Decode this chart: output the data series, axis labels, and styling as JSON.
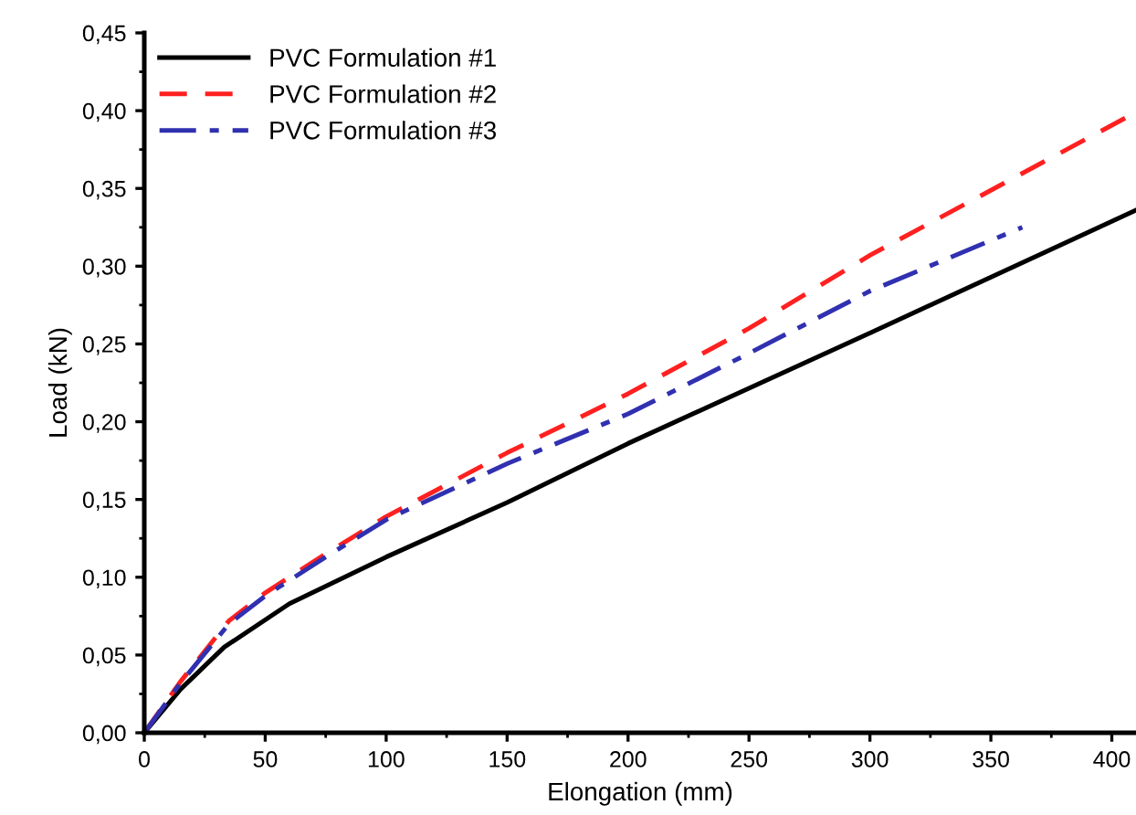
{
  "chart_data": {
    "type": "line",
    "xlabel": "Elongation (mm)",
    "ylabel": "Load (kN)",
    "xlim": [
      0,
      410
    ],
    "ylim": [
      0,
      0.45
    ],
    "xticks": [
      0,
      50,
      100,
      150,
      200,
      250,
      300,
      350,
      400
    ],
    "yticks": [
      {
        "value": 0,
        "label": "0,00"
      },
      {
        "value": 0.05,
        "label": "0,05"
      },
      {
        "value": 0.1,
        "label": "0,10"
      },
      {
        "value": 0.15,
        "label": "0,15"
      },
      {
        "value": 0.2,
        "label": "0,20"
      },
      {
        "value": 0.25,
        "label": "0,25"
      },
      {
        "value": 0.3,
        "label": "0,30"
      },
      {
        "value": 0.35,
        "label": "0,35"
      },
      {
        "value": 0.4,
        "label": "0,40"
      },
      {
        "value": 0.45,
        "label": "0,45"
      }
    ],
    "grid": false,
    "legend": "top left",
    "marker": "none",
    "series": [
      {
        "name": "PVC Formulation #1",
        "color": "#000000",
        "line_style": "solid",
        "x": [
          0,
          15,
          33,
          60,
          100,
          150,
          200,
          300,
          410
        ],
        "values": [
          0,
          0.028,
          0.055,
          0.083,
          0.113,
          0.148,
          0.186,
          0.257,
          0.336
        ]
      },
      {
        "name": "PVC Formulation #2",
        "color": "#ff2020",
        "line_style": "dashed",
        "x": [
          0,
          15,
          35,
          50,
          75,
          100,
          150,
          200,
          250,
          300,
          410
        ],
        "values": [
          0,
          0.033,
          0.072,
          0.09,
          0.115,
          0.139,
          0.18,
          0.218,
          0.26,
          0.307,
          0.399
        ]
      },
      {
        "name": "PVC Formulation #3",
        "color": "#3030b0",
        "line_style": "dashdot",
        "x": [
          0,
          15,
          35,
          50,
          75,
          100,
          150,
          200,
          250,
          300,
          363
        ],
        "values": [
          0,
          0.032,
          0.07,
          0.088,
          0.113,
          0.137,
          0.173,
          0.205,
          0.244,
          0.284,
          0.325
        ]
      }
    ]
  }
}
